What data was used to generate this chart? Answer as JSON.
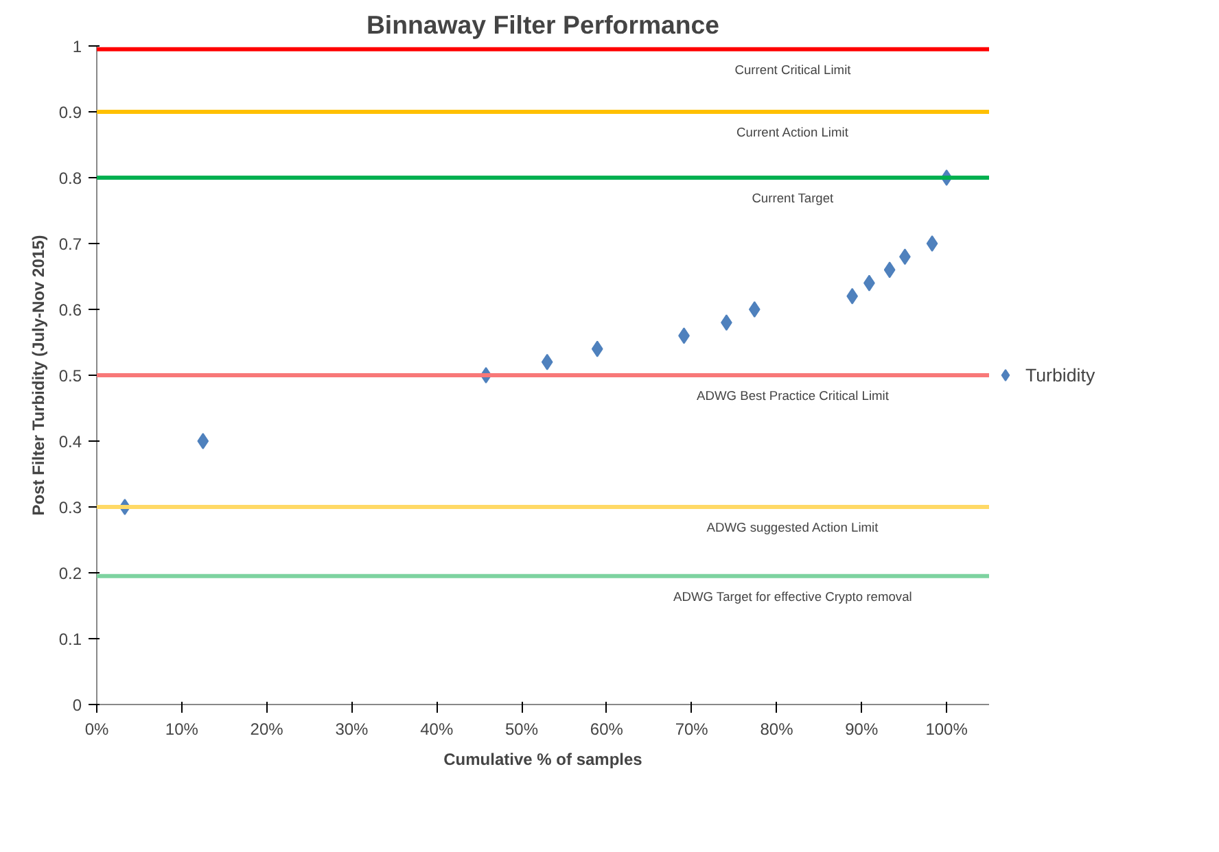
{
  "chart_data": {
    "type": "scatter",
    "title": "Binnaway Filter Performance",
    "xlabel": "Cumulative % of samples",
    "ylabel": "Post Filter Turbidity (July-Nov 2015)",
    "x": [
      3.3,
      12.5,
      45.8,
      53,
      58.9,
      69.1,
      74.1,
      77.4,
      88.9,
      90.9,
      93.3,
      95.1,
      98.3,
      100
    ],
    "series": [
      {
        "name": "Turbidity",
        "color": "#4f81bd",
        "values": [
          0.3,
          0.4,
          0.5,
          0.52,
          0.54,
          0.56,
          0.58,
          0.6,
          0.62,
          0.64,
          0.66,
          0.68,
          0.7,
          0.8
        ]
      }
    ],
    "marker": "diamond",
    "legend": "right",
    "grid": false,
    "xlim": [
      0,
      105
    ],
    "ylim": [
      0,
      1
    ],
    "xticks": [
      {
        "value": 0,
        "label": "0%"
      },
      {
        "value": 10,
        "label": "10%"
      },
      {
        "value": 20,
        "label": "20%"
      },
      {
        "value": 30,
        "label": "30%"
      },
      {
        "value": 40,
        "label": "40%"
      },
      {
        "value": 50,
        "label": "50%"
      },
      {
        "value": 60,
        "label": "60%"
      },
      {
        "value": 70,
        "label": "70%"
      },
      {
        "value": 80,
        "label": "80%"
      },
      {
        "value": 90,
        "label": "90%"
      },
      {
        "value": 100,
        "label": "100%"
      }
    ],
    "yticks": [
      0,
      0.1,
      0.2,
      0.3,
      0.4,
      0.5,
      0.6,
      0.7,
      0.8,
      0.9,
      1
    ],
    "ref_lines": [
      {
        "axis": "y",
        "value": 0.995,
        "label": "Current Critical Limit",
        "color": "#ff0000"
      },
      {
        "axis": "y",
        "value": 0.9,
        "label": "Current Action Limit",
        "color": "#ffc000"
      },
      {
        "axis": "y",
        "value": 0.8,
        "label": "Current Target",
        "color": "#00b050"
      },
      {
        "axis": "y",
        "value": 0.5,
        "label": "ADWG Best Practice Critical Limit",
        "color": "#f87878"
      },
      {
        "axis": "y",
        "value": 0.3,
        "label": "ADWG suggested Action Limit",
        "color": "#ffd966"
      },
      {
        "axis": "y",
        "value": 0.195,
        "label": "ADWG Target for effective Crypto removal",
        "color": "#7dd3a0"
      }
    ]
  }
}
